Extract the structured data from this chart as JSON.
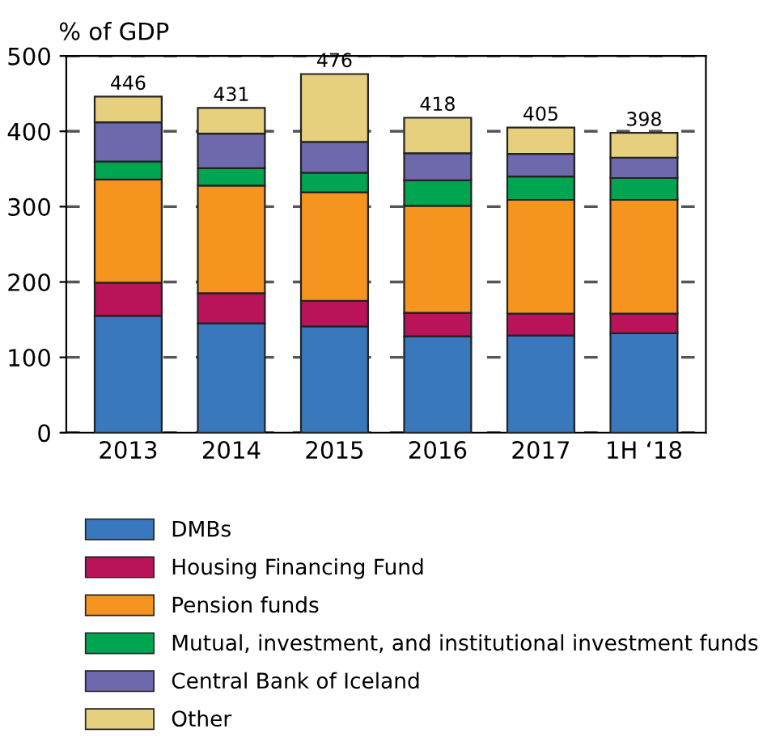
{
  "chart_data": {
    "type": "bar",
    "stacked": true,
    "ylabel": "% of GDP",
    "categories": [
      "2013",
      "2014",
      "2015",
      "2016",
      "2017",
      "1H ‘18"
    ],
    "series": [
      {
        "name": "DMBs",
        "color": "#3a78bd",
        "values": [
          155,
          145,
          141,
          128,
          129,
          132
        ]
      },
      {
        "name": "Housing Financing Fund",
        "color": "#b9135a",
        "values": [
          44,
          40,
          34,
          31,
          29,
          26
        ]
      },
      {
        "name": "Pension funds",
        "color": "#f5941f",
        "values": [
          137,
          143,
          144,
          142,
          151,
          151
        ]
      },
      {
        "name": "Mutual, investment, and institutional investment funds",
        "color": "#00a551",
        "values": [
          24,
          23,
          26,
          34,
          31,
          29
        ]
      },
      {
        "name": "Central Bank of Iceland",
        "color": "#6e68ad",
        "values": [
          52,
          46,
          41,
          36,
          30,
          27
        ]
      },
      {
        "name": "Other",
        "color": "#e6d07e",
        "values": [
          34,
          34,
          90,
          47,
          35,
          33
        ]
      }
    ],
    "totals": [
      "446",
      "431",
      "476",
      "418",
      "405",
      "398"
    ],
    "ylim": [
      0,
      500
    ],
    "yticks": [
      0,
      100,
      200,
      300,
      400,
      500
    ],
    "grid": "y",
    "line_style": "dashed",
    "legend": "bottom"
  }
}
